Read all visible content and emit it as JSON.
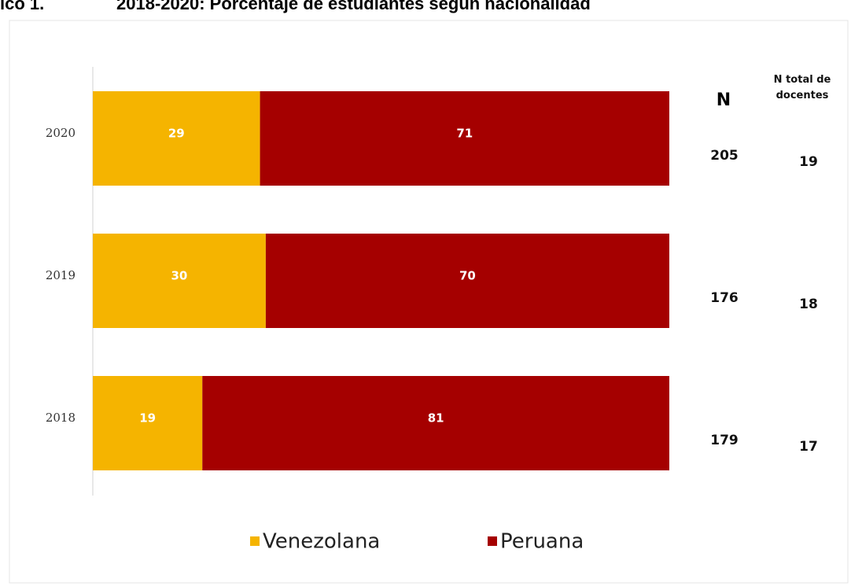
{
  "chart_data": {
    "type": "stacked_barh",
    "figure_label": "ico 1.",
    "title": "2018-2020: Porcentaje de estudiantes según nacionalidad",
    "categories": [
      "2020",
      "2019",
      "2018"
    ],
    "series": [
      {
        "name": "Venezolana",
        "color": "#f5b400",
        "values": [
          29,
          30,
          19
        ]
      },
      {
        "name": "Peruana",
        "color": "#a50000",
        "values": [
          71,
          70,
          81
        ]
      }
    ],
    "xlim": [
      0,
      100
    ],
    "n_header": "N",
    "n_values": [
      205,
      176,
      179
    ],
    "docentes_header": "N total de docentes",
    "docentes_values": [
      19,
      18,
      17
    ],
    "legend": "bottom"
  }
}
